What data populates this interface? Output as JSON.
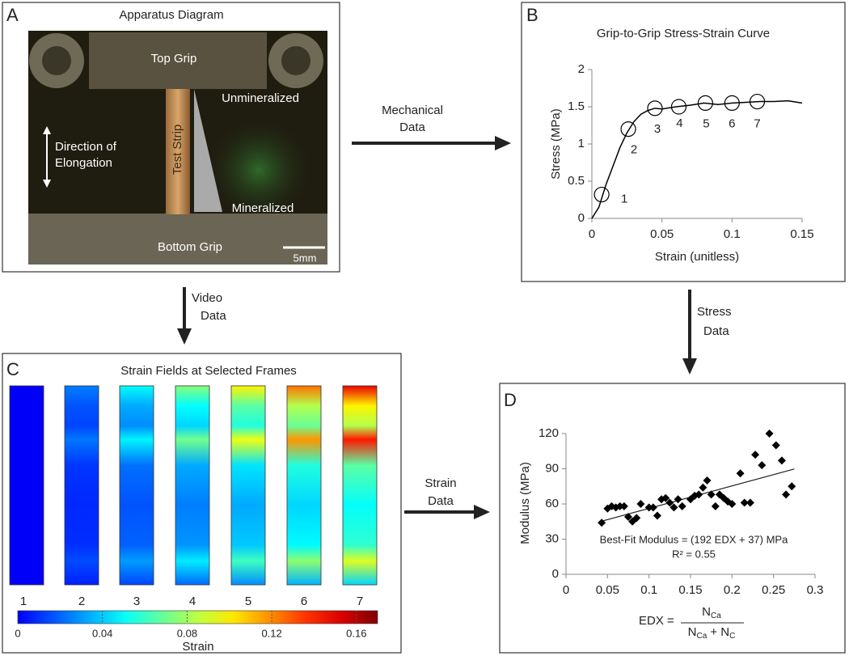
{
  "panel_a": {
    "letter": "A",
    "title": "Apparatus Diagram",
    "labels": {
      "top_grip": "Top Grip",
      "unmineralized": "Unmineralized",
      "test_strip": "Test Strip",
      "direction": [
        "Direction of",
        "Elongation"
      ],
      "mineralized": "Mineralized",
      "bottom_grip": "Bottom Grip",
      "scale_bar": "5mm"
    }
  },
  "arrows": {
    "mechanical": [
      "Mechanical",
      "Data"
    ],
    "video": [
      "Video",
      "Data"
    ],
    "stress": [
      "Stress",
      "Data"
    ],
    "strain": [
      "Strain",
      "Data"
    ]
  },
  "panel_c": {
    "letter": "C",
    "title": "Strain Fields at Selected Frames",
    "frames": [
      "1",
      "2",
      "3",
      "4",
      "5",
      "6",
      "7"
    ],
    "colorbar": {
      "label": "Strain",
      "lim": [
        0,
        0.17
      ],
      "ticks": [
        0,
        0.04,
        0.08,
        0.12,
        0.16
      ]
    }
  },
  "chart_data": [
    {
      "type": "line",
      "letter": "B",
      "title": "Grip-to-Grip Stress-Strain Curve",
      "x_label": "Strain (unitless)",
      "y_label": "Stress (MPa)",
      "x": [
        0,
        0.005,
        0.01,
        0.015,
        0.02,
        0.025,
        0.03,
        0.035,
        0.04,
        0.045,
        0.05,
        0.06,
        0.07,
        0.08,
        0.09,
        0.1,
        0.11,
        0.12,
        0.13,
        0.14,
        0.15
      ],
      "values": [
        0,
        0.15,
        0.45,
        0.7,
        0.95,
        1.15,
        1.3,
        1.4,
        1.45,
        1.48,
        1.47,
        1.5,
        1.52,
        1.55,
        1.53,
        1.55,
        1.56,
        1.57,
        1.57,
        1.58,
        1.55
      ],
      "color": "#000000",
      "markers": {
        "x": [
          0.007,
          0.026,
          0.045,
          0.062,
          0.081,
          0.1,
          0.118
        ],
        "y": [
          0.32,
          1.2,
          1.48,
          1.5,
          1.55,
          1.55,
          1.57
        ],
        "labels": [
          "1",
          "2",
          "3",
          "4",
          "5",
          "6",
          "7"
        ]
      },
      "xlim": [
        0,
        0.15
      ],
      "ylim": [
        0,
        2
      ],
      "xticks": [
        0,
        0.05,
        0.1,
        0.15
      ],
      "yticks": [
        0,
        0.5,
        1,
        1.5,
        2
      ]
    },
    {
      "type": "scatter",
      "letter": "D",
      "y_label": "Modulus (MPa)",
      "x_label": {
        "lhs": "EDX =",
        "num": [
          "N",
          "Ca"
        ],
        "den": [
          "N",
          "Ca",
          "+ N",
          "C"
        ]
      },
      "x": [
        0.043,
        0.05,
        0.055,
        0.06,
        0.065,
        0.07,
        0.075,
        0.08,
        0.085,
        0.09,
        0.1,
        0.105,
        0.11,
        0.115,
        0.12,
        0.125,
        0.13,
        0.135,
        0.14,
        0.15,
        0.155,
        0.16,
        0.165,
        0.17,
        0.175,
        0.18,
        0.185,
        0.19,
        0.195,
        0.2,
        0.21,
        0.215,
        0.222,
        0.228,
        0.236,
        0.245,
        0.253,
        0.26,
        0.265,
        0.272
      ],
      "values": [
        44,
        56,
        58,
        57,
        58,
        58,
        49,
        45,
        48,
        60,
        57,
        57,
        50,
        64,
        65,
        61,
        57,
        64,
        58,
        64,
        67,
        68,
        74,
        80,
        68,
        58,
        68,
        65,
        62,
        60,
        86,
        61,
        61,
        102,
        93,
        120,
        110,
        97,
        68,
        75
      ],
      "color": "#000000",
      "fit": {
        "x": [
          0.04,
          0.275
        ],
        "y": [
          44.7,
          89.8
        ]
      },
      "annotations": [
        "Best-Fit Modulus = (192 EDX + 37) MPa",
        "R² = 0.55"
      ],
      "xlim": [
        0,
        0.3
      ],
      "ylim": [
        0,
        120
      ],
      "xticks": [
        0,
        0.05,
        0.1,
        0.15,
        0.2,
        0.25,
        0.3
      ],
      "yticks": [
        0,
        30,
        60,
        90,
        120
      ]
    }
  ]
}
